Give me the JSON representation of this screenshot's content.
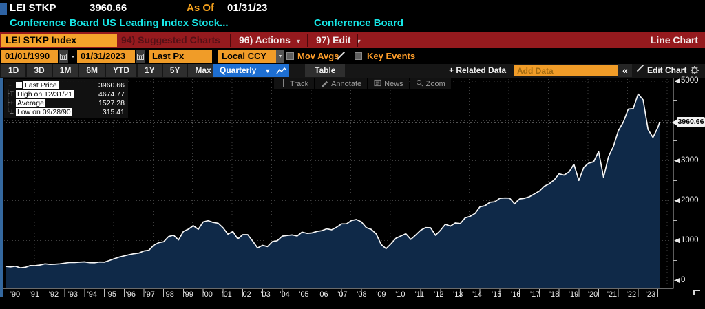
{
  "header": {
    "ticker": "LEI STKP",
    "last_value": "3960.66",
    "as_of_label": "As Of",
    "as_of_date": "01/31/23",
    "description": "Conference Board US Leading Index Stock...",
    "source": "Conference Board"
  },
  "menubar": {
    "security_box": "LEI STKP Index",
    "suggested_charts": "94) Suggested Charts",
    "actions": "96) Actions",
    "edit": "97) Edit",
    "chart_type": "Line Chart"
  },
  "controls": {
    "date_from": "01/01/1990",
    "date_to": "01/31/2023",
    "price_field": "Last Px",
    "currency": "Local CCY",
    "mov_avgs_label": "Mov Avgs",
    "key_events_label": "Key Events"
  },
  "toolbar": {
    "periods": [
      "1D",
      "3D",
      "1M",
      "6M",
      "YTD",
      "1Y",
      "5Y",
      "Max"
    ],
    "frequency": "Quarterly",
    "table_label": "Table",
    "related_data_label": "Related Data",
    "add_data_placeholder": "Add Data",
    "collapse_label": "«",
    "edit_chart_label": "Edit Chart"
  },
  "chart_tools": [
    "Track",
    "Annotate",
    "News",
    "Zoom"
  ],
  "legend": {
    "rows": [
      {
        "marker": "last-price-swatch",
        "label": "Last Price",
        "value": "3960.66"
      },
      {
        "marker": "high-marker",
        "label": "High on 12/31/21",
        "value": "4674.77"
      },
      {
        "marker": "average-marker",
        "label": "Average",
        "value": "1527.28"
      },
      {
        "marker": "low-marker",
        "label": "Low on 09/28/90",
        "value": "315.41"
      }
    ]
  },
  "icons": {
    "calendar": "grid-calendar",
    "dropdown": "▼",
    "pencil": "✎",
    "gear": "⚙",
    "collapse": "«",
    "plus": "+",
    "line-chart": "zigzag"
  },
  "colors": {
    "amber": "#f09c28",
    "blue": "#1e6fd2",
    "cyan": "#17e7e7",
    "menubar_red": "#951a1e",
    "dim_red_text": "#541016",
    "chart_fill": "#0f2948",
    "chart_line": "#f5f5f5",
    "grid": "#3f3f3f"
  },
  "chart_data": {
    "type": "area",
    "title": "LEI STKP Index - Conference Board US Leading Index Stock price component",
    "x_unit": "decimal_year_quarterly",
    "x_start": 1990.0,
    "x_step": 0.25,
    "x_last": 2023.083,
    "xlim": [
      1990,
      2023.4
    ],
    "ylim": [
      0,
      5300
    ],
    "grid": "dotted",
    "legend_position": "top-left",
    "values": [
      353.4,
      339.9,
      358.0,
      315.4,
      330.2,
      375.2,
      371.2,
      387.9,
      417.1,
      403.7,
      408.1,
      417.8,
      435.7,
      451.7,
      450.5,
      458.9,
      466.4,
      445.8,
      444.3,
      462.7,
      459.3,
      500.7,
      544.8,
      584.4,
      615.9,
      645.5,
      670.6,
      687.3,
      740.7,
      757.1,
      885.1,
      947.3,
      970.4,
      1101.8,
      1133.8,
      1017.0,
      1229.2,
      1286.4,
      1372.7,
      1282.7,
      1469.3,
      1498.6,
      1454.6,
      1436.5,
      1320.3,
      1160.3,
      1224.4,
      1040.9,
      1148.1,
      1147.4,
      989.8,
      815.3,
      879.8,
      848.2,
      974.5,
      996.0,
      1111.9,
      1126.2,
      1140.8,
      1114.6,
      1211.9,
      1180.6,
      1191.3,
      1228.8,
      1248.3,
      1294.9,
      1270.2,
      1335.9,
      1418.3,
      1420.9,
      1503.3,
      1526.8,
      1468.4,
      1322.7,
      1280.0,
      1166.4,
      903.3,
      797.9,
      919.3,
      1057.1,
      1115.1,
      1169.4,
      1030.7,
      1141.2,
      1257.6,
      1325.8,
      1320.6,
      1131.4,
      1257.6,
      1408.5,
      1362.2,
      1440.7,
      1426.2,
      1569.2,
      1606.3,
      1681.6,
      1848.4,
      1872.3,
      1960.2,
      1972.3,
      2058.9,
      2067.9,
      2063.1,
      1920.0,
      2043.9,
      2059.7,
      2098.9,
      2168.3,
      2238.8,
      2362.7,
      2423.4,
      2519.4,
      2673.6,
      2640.9,
      2718.4,
      2914.0,
      2506.9,
      2834.4,
      2941.8,
      2976.7,
      3230.8,
      2584.6,
      3100.3,
      3363.0,
      3756.1,
      3972.9,
      4297.5,
      4307.5,
      4674.8,
      4530.4,
      3785.4,
      3585.6,
      3839.5,
      3960.66
    ],
    "last_price": 3960.66,
    "last_price_label": "3960.66",
    "high": {
      "date": "12/31/21",
      "value": 4674.77
    },
    "average": 1527.28,
    "low": {
      "date": "09/28/90",
      "value": 315.41
    },
    "y_axis_labels": [
      {
        "v": 5000,
        "t": "5000"
      },
      {
        "v": 3000,
        "t": "3000"
      },
      {
        "v": 2000,
        "t": "2000"
      },
      {
        "v": 1000,
        "t": "1000"
      },
      {
        "v": 0,
        "t": "0"
      }
    ],
    "y_minor_ticks": [
      500,
      1500,
      2500,
      3500,
      4500
    ],
    "x_tick_labels": [
      "'90",
      "'91",
      "'92",
      "'93",
      "'94",
      "'95",
      "'96",
      "'97",
      "'98",
      "'99",
      "'00",
      "'01",
      "'02",
      "'03",
      "'04",
      "'05",
      "'06",
      "'07",
      "'08",
      "'09",
      "'10",
      "'11",
      "'12",
      "'13",
      "'14",
      "'15",
      "'16",
      "'17",
      "'18",
      "'19",
      "'20",
      "'21",
      "'22",
      "'23"
    ]
  }
}
